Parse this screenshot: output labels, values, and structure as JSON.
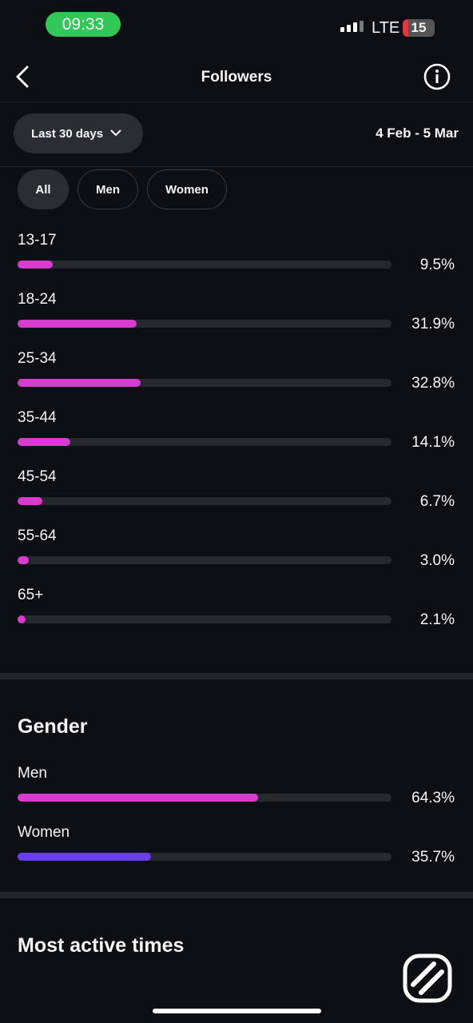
{
  "status_bar": {
    "time": "09:33",
    "network": "LTE",
    "battery": "15"
  },
  "header": {
    "title": "Followers"
  },
  "date_filter": {
    "label": "Last 30 days",
    "range": "4 Feb - 5 Mar"
  },
  "tabs": [
    "All",
    "Men",
    "Women"
  ],
  "chart_data": [
    {
      "type": "bar",
      "categories": [
        "13-17",
        "18-24",
        "25-34",
        "35-44",
        "45-54",
        "55-64",
        "65+"
      ],
      "values": [
        9.5,
        31.9,
        32.8,
        14.1,
        6.7,
        3.0,
        2.1
      ],
      "value_labels": [
        "9.5%",
        "31.9%",
        "32.8%",
        "14.1%",
        "6.7%",
        "3.0%",
        "2.1%"
      ],
      "color": "#d53ccf",
      "xlim": [
        0,
        100
      ]
    },
    {
      "type": "bar",
      "title": "Gender",
      "categories": [
        "Men",
        "Women"
      ],
      "values": [
        64.3,
        35.7
      ],
      "value_labels": [
        "64.3%",
        "35.7%"
      ],
      "colors": [
        "#d53ccf",
        "#6c3cf0"
      ],
      "xlim": [
        0,
        100
      ]
    }
  ],
  "next_section": {
    "title": "Most active times"
  }
}
